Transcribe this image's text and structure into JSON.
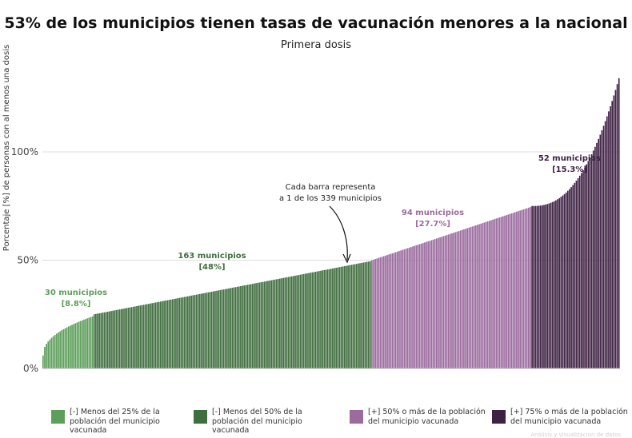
{
  "chart_data": {
    "type": "bar",
    "title": "53% de los municipios tienen tasas de vacunación menores a la nacional",
    "subtitle": "Primera dosis",
    "ylabel": "Porcentaje [%] de personas con al menos una dosis",
    "xlabel": "",
    "ylim": [
      0,
      135
    ],
    "yticks": [
      {
        "value": 0,
        "label": "0%"
      },
      {
        "value": 50,
        "label": "50%"
      },
      {
        "value": 100,
        "label": "100%"
      }
    ],
    "grid": true,
    "legend_position": "bottom",
    "groups": [
      {
        "name": "[-] Menos del 25% de la población del municipio vacunada",
        "short": "<25%",
        "count": 30,
        "color": "#5e9e5b",
        "value_range": [
          6,
          24
        ],
        "annotation_count": "30 municipios",
        "annotation_share": "[8.8%]"
      },
      {
        "name": "[-] Menos del 50% de la población del municipio vacunada",
        "short": "<50%",
        "count": 163,
        "color": "#3f6e3f",
        "value_range": [
          25,
          49.5
        ],
        "annotation_count": "163 municipios",
        "annotation_share": "[48%]"
      },
      {
        "name": "[+] 50% o más de la población del municipio vacunada",
        "short": ">=50%",
        "count": 94,
        "color": "#9b6b9e",
        "value_range": [
          50,
          74.5
        ],
        "annotation_count": "94 municipios",
        "annotation_share": "[27.7%]"
      },
      {
        "name": "[+] 75% o más de la población del municipio vacunada",
        "short": ">=75%",
        "count": 52,
        "color": "#3e2244",
        "value_range": [
          75,
          134
        ],
        "annotation_count": "52 municipios",
        "annotation_share": "[15.3%]"
      }
    ],
    "values_note": "339 bars sorted ascending; per-bar values estimated from gridlines",
    "callout": {
      "line1": "Cada barra representa",
      "line2": "a 1 de los 339 municipios"
    }
  },
  "footer_note": "Análisis y visualización de datos"
}
